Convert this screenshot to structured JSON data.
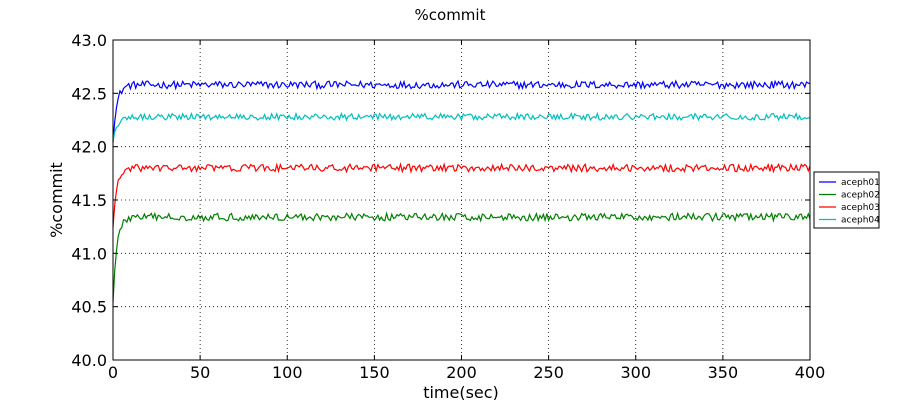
{
  "chart_data": {
    "type": "line",
    "title": "%commit",
    "xlabel": "time(sec)",
    "ylabel": "%commit",
    "xlim": [
      0,
      400
    ],
    "ylim": [
      40.0,
      43.0
    ],
    "xticks": [
      0,
      50,
      100,
      150,
      200,
      250,
      300,
      350,
      400
    ],
    "xtick_labels": [
      "0",
      "50",
      "100",
      "150",
      "200",
      "250",
      "300",
      "350",
      "400"
    ],
    "yticks": [
      40.0,
      40.5,
      41.0,
      41.5,
      42.0,
      42.5,
      43.0
    ],
    "ytick_labels": [
      "40.0",
      "40.5",
      "41.0",
      "41.5",
      "42.0",
      "42.5",
      "43.0"
    ],
    "grid": true,
    "legend_position": "right",
    "series": [
      {
        "name": "aceph01",
        "color": "#0000ff",
        "start": 42.05,
        "plateau": 42.58,
        "noise": 0.035
      },
      {
        "name": "aceph02",
        "color": "#008000",
        "start": 40.55,
        "plateau": 41.34,
        "noise": 0.035
      },
      {
        "name": "aceph03",
        "color": "#ff0000",
        "start": 41.25,
        "plateau": 41.8,
        "noise": 0.035
      },
      {
        "name": "aceph04",
        "color": "#00bfbf",
        "start": 42.05,
        "plateau": 42.28,
        "noise": 0.03
      }
    ]
  }
}
